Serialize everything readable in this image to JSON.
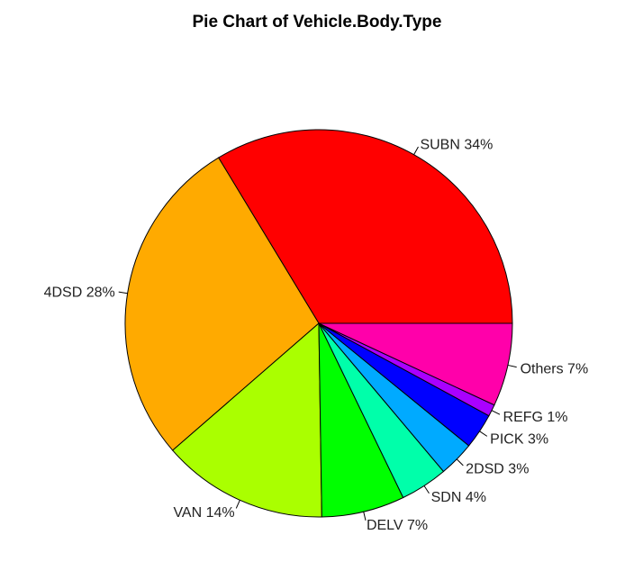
{
  "chart_data": {
    "type": "pie",
    "title": "Pie Chart of Vehicle.Body.Type",
    "slices": [
      {
        "category": "SUBN",
        "value": 34,
        "label": "SUBN 34%",
        "color": "#FF0000"
      },
      {
        "category": "4DSD",
        "value": 28,
        "label": "4DSD 28%",
        "color": "#FFAA00"
      },
      {
        "category": "VAN",
        "value": 14,
        "label": "VAN 14%",
        "color": "#AAFF00"
      },
      {
        "category": "DELV",
        "value": 7,
        "label": "DELV 7%",
        "color": "#00FF00"
      },
      {
        "category": "SDN",
        "value": 4,
        "label": "SDN 4%",
        "color": "#00FFAA"
      },
      {
        "category": "2DSD",
        "value": 3,
        "label": "2DSD 3%",
        "color": "#00AAFF"
      },
      {
        "category": "PICK",
        "value": 3,
        "label": "PICK 3%",
        "color": "#0000FF"
      },
      {
        "category": "REFG",
        "value": 1,
        "label": "REFG 1%",
        "color": "#AA00FF"
      },
      {
        "category": "Others",
        "value": 7,
        "label": "Others 7%",
        "color": "#FF00AA"
      }
    ],
    "start_angle_deg": 0,
    "direction": "counterclockwise",
    "legend": "none"
  }
}
